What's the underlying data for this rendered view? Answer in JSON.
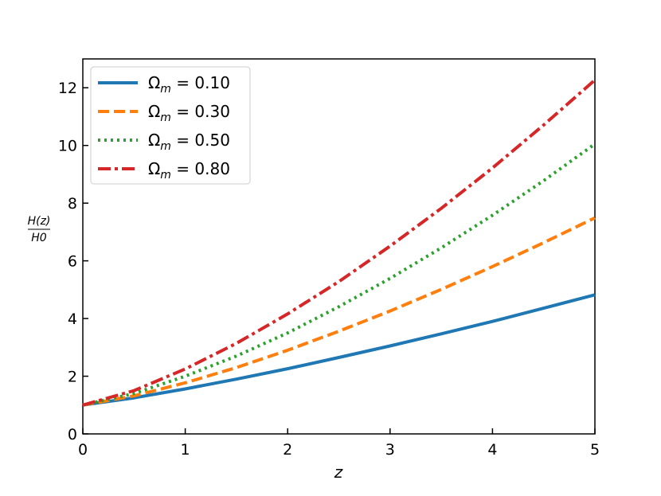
{
  "chart_data": {
    "type": "line",
    "xlabel": "z",
    "ylabel_num": "H(z)",
    "ylabel_den": "H0",
    "xlim": [
      0,
      5
    ],
    "ylim": [
      0,
      13
    ],
    "x_ticks": [
      "0",
      "1",
      "2",
      "3",
      "4",
      "5"
    ],
    "y_ticks": [
      "0",
      "2",
      "4",
      "6",
      "8",
      "10",
      "12"
    ],
    "grid": false,
    "legend_position": "upper-left",
    "x": [
      0,
      0.5,
      1,
      1.5,
      2,
      2.5,
      3,
      3.5,
      4,
      4.5,
      5
    ],
    "series": [
      {
        "name": "Ω_m = 0.10",
        "legend_lhs": "Ω",
        "legend_sub": "m",
        "legend_rhs": " = 0.10",
        "color": "#1f77b4",
        "style": "solid",
        "values": [
          1.0,
          1.25,
          1.56,
          1.9,
          2.26,
          2.65,
          3.05,
          3.47,
          3.9,
          4.36,
          4.82
        ]
      },
      {
        "name": "Ω_m = 0.30",
        "legend_lhs": "Ω",
        "legend_sub": "m",
        "legend_rhs": " = 0.30",
        "color": "#ff7f0e",
        "style": "dashed",
        "values": [
          1.0,
          1.32,
          1.77,
          2.3,
          2.9,
          3.56,
          4.26,
          5.01,
          5.8,
          6.63,
          7.49
        ]
      },
      {
        "name": "Ω_m = 0.50",
        "legend_lhs": "Ω",
        "legend_sub": "m",
        "legend_rhs": " = 0.50",
        "color": "#2ca02c",
        "style": "dotted",
        "values": [
          1.0,
          1.4,
          2.0,
          2.7,
          3.5,
          4.41,
          5.39,
          6.45,
          7.58,
          8.78,
          10.05
        ]
      },
      {
        "name": "Ω_m = 0.80",
        "legend_lhs": "Ω",
        "legend_sub": "m",
        "legend_rhs": " = 0.80",
        "color": "#d62728",
        "style": "dashdot",
        "values": [
          1.0,
          1.5,
          2.25,
          3.14,
          4.16,
          5.28,
          6.51,
          7.82,
          9.22,
          10.71,
          12.27
        ]
      }
    ]
  }
}
